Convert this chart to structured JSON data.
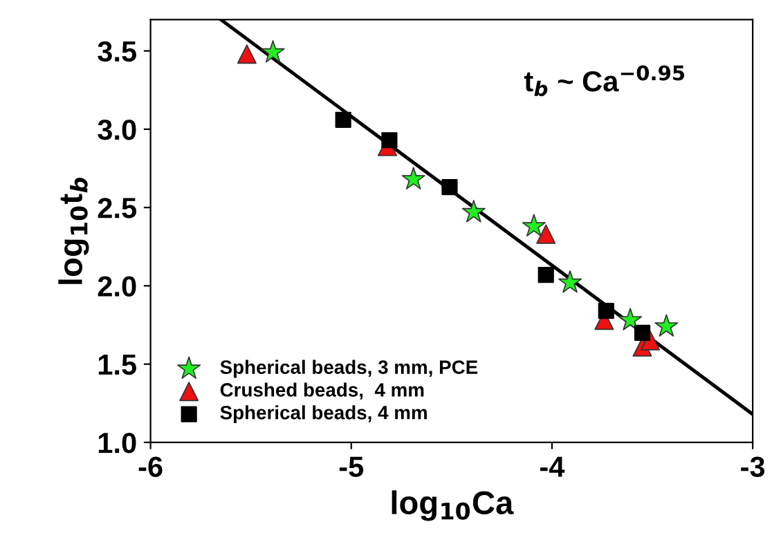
{
  "chart_data": {
    "type": "scatter",
    "xlabel": "log$_{10}$Ca",
    "ylabel": "log$_{10}$t$_{b}$",
    "annotations": [
      "t$_{b}$ ~ Ca$^{−0.95}$"
    ],
    "xlim": [
      -6,
      -3
    ],
    "xticks": [
      -6,
      -5,
      -4,
      -3
    ],
    "ylim": [
      1.0,
      3.7
    ],
    "yticks": [
      {
        "value": 1.0,
        "label": "1.0"
      },
      {
        "value": 1.5,
        "label": "1.5"
      },
      {
        "value": 2.0,
        "label": "2.0"
      },
      {
        "value": 2.5,
        "label": "2.5"
      },
      {
        "value": 3.0,
        "label": "3.0"
      },
      {
        "value": 3.5,
        "label": "3.5"
      }
    ],
    "grid": false,
    "legend": "bottom left",
    "series": [
      {
        "type": "line",
        "color": "#000000",
        "marker": "none",
        "line_style": "solid",
        "x": [
          -5.65,
          -3.0
        ],
        "values": [
          3.7,
          1.18
        ]
      },
      {
        "name": "Spherical beads, 3 mm, PCE",
        "color": "#22ee22",
        "marker": "star",
        "x": [
          -5.39,
          -4.69,
          -4.39,
          -4.09,
          -3.91,
          -3.61,
          -3.43
        ],
        "values": [
          3.49,
          2.68,
          2.47,
          2.38,
          2.02,
          1.78,
          1.74
        ]
      },
      {
        "name": "Crushed beads,  4 mm",
        "color": "#ee1111",
        "marker": "triangle",
        "x": [
          -5.52,
          -4.82,
          -4.03,
          -3.74,
          -3.55,
          -3.51
        ],
        "values": [
          3.48,
          2.89,
          2.33,
          1.78,
          1.61,
          1.65
        ]
      },
      {
        "name": "Spherical beads, 4 mm",
        "color": "#000000",
        "marker": "square",
        "x": [
          -5.04,
          -4.81,
          -4.51,
          -4.03,
          -3.73,
          -3.55
        ],
        "values": [
          3.06,
          2.93,
          2.63,
          2.07,
          1.84,
          1.7
        ]
      }
    ]
  }
}
